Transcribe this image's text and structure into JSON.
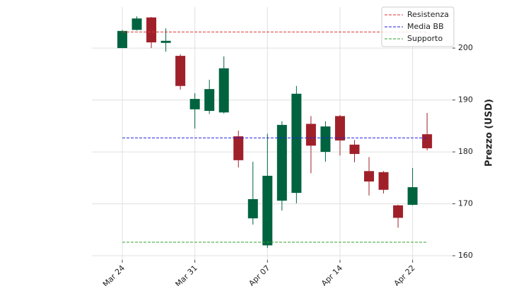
{
  "chart_data": {
    "type": "candlestick",
    "y_label": "Prezzo (USD)",
    "categories": [
      "Mar 24",
      null,
      null,
      null,
      null,
      "Mar 31",
      null,
      null,
      null,
      null,
      "Apr 07",
      null,
      null,
      null,
      null,
      "Apr 14",
      null,
      null,
      null,
      null,
      "Apr 22",
      null
    ],
    "open": [
      200,
      203.5,
      205.9,
      201,
      198.5,
      188.2,
      187.9,
      187.6,
      183,
      167.2,
      162,
      170.6,
      172.1,
      185.4,
      180,
      186.9,
      181.4,
      176.3,
      176.1,
      169.7,
      169.8,
      183.4
    ],
    "high": [
      203.5,
      206.1,
      206,
      203.8,
      198.8,
      191.3,
      193.9,
      198.4,
      184.1,
      178.1,
      183.5,
      185.9,
      192.7,
      186.9,
      185.9,
      187.1,
      182.3,
      179,
      176.3,
      169.8,
      176.9,
      187.5
    ],
    "low": [
      200,
      203.4,
      200,
      199.3,
      192,
      184.5,
      187.3,
      187.4,
      177,
      166,
      161.5,
      168.7,
      170.1,
      175.9,
      178.1,
      179.3,
      178,
      171.6,
      172,
      165.4,
      169.7,
      180.3
    ],
    "close": [
      203.3,
      205.7,
      201.1,
      201.4,
      192.7,
      190.2,
      192.1,
      196.1,
      178.4,
      170.9,
      175.4,
      185.2,
      191.2,
      181.2,
      184.9,
      182.2,
      179.6,
      174.3,
      172.7,
      167.3,
      173.2,
      180.7
    ],
    "up_color": "#006340",
    "down_color": "#a0202a",
    "levels": [
      {
        "name": "Resistenza",
        "color": "#e03030",
        "value": 203.1
      },
      {
        "name": "Media BB",
        "color": "#2020e0",
        "value": 182.7
      },
      {
        "name": "Supporto",
        "color": "#30a030",
        "value": 162.6
      }
    ],
    "ylim": [
      159.2,
      207.9
    ],
    "yticks": [
      160,
      170,
      180,
      190,
      200
    ],
    "grid": true,
    "legend": "upper right"
  }
}
